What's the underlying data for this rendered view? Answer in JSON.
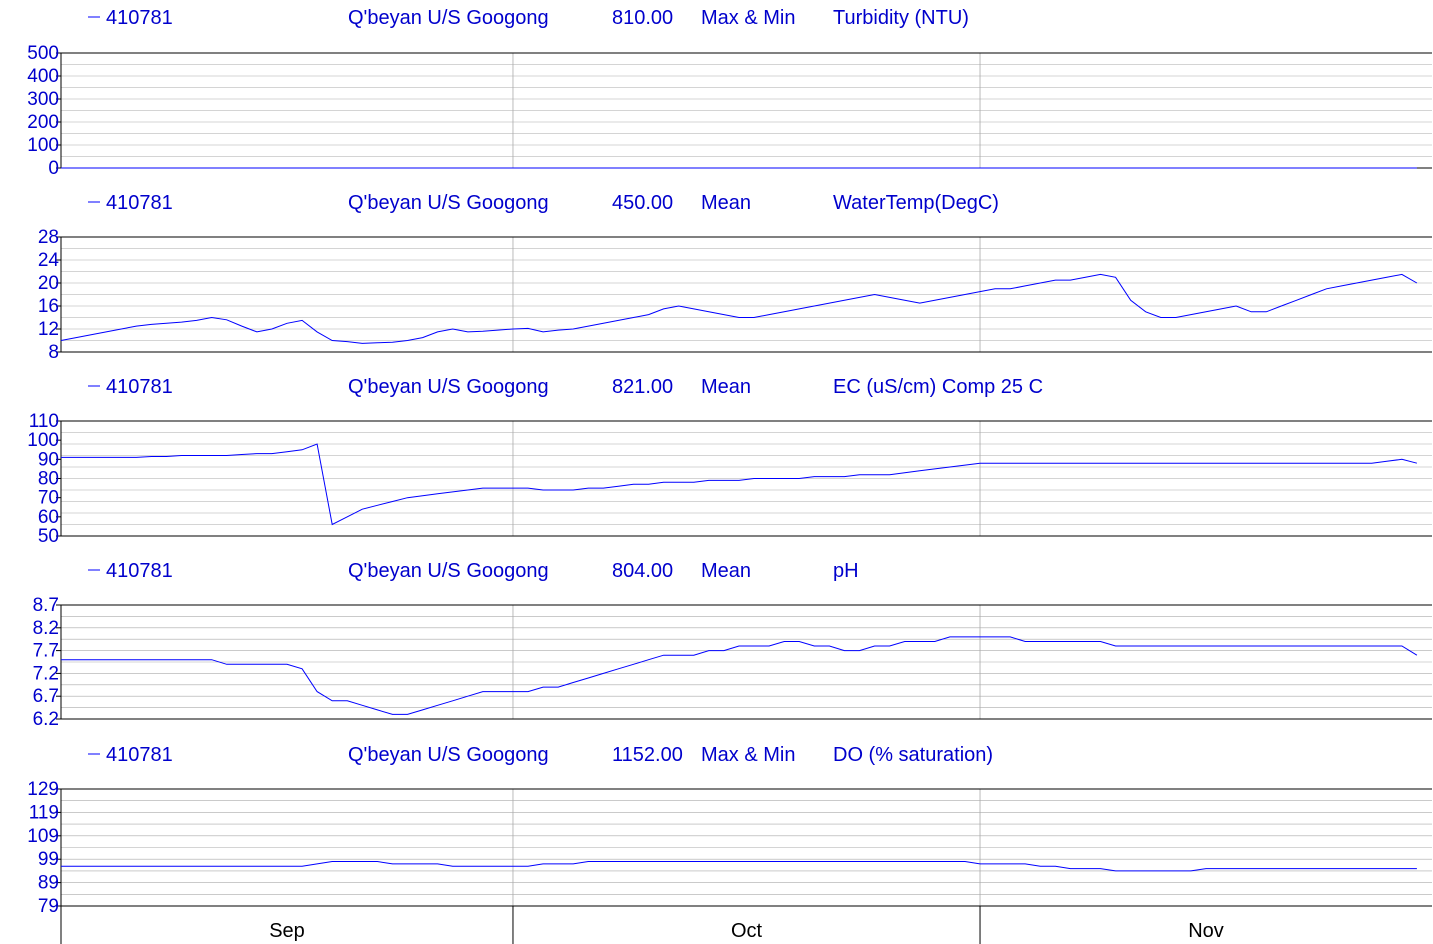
{
  "chart_data": [
    {
      "type": "line",
      "station": "410781",
      "site": "Q'beyan U/S Googong",
      "variable_code": "810.00",
      "statistic": "Max & Min",
      "parameter": "Turbidity (NTU)",
      "ylim": [
        0,
        500
      ],
      "yticks": [
        "500",
        "400",
        "300",
        "200",
        "100",
        "0"
      ],
      "x_day_range": [
        0,
        90
      ],
      "series_day_step": 1,
      "values": [
        0,
        0,
        0,
        0,
        0,
        0,
        0,
        0,
        0,
        0,
        0,
        0,
        0,
        0,
        0,
        0,
        0,
        0,
        0,
        0,
        0,
        0,
        0,
        0,
        0,
        0,
        0,
        0,
        0,
        0,
        0,
        0,
        0,
        0,
        0,
        0,
        0,
        0,
        0,
        0,
        0,
        0,
        0,
        0,
        0,
        0,
        0,
        0,
        0,
        0,
        0,
        0,
        0,
        0,
        0,
        0,
        0,
        0,
        0,
        0,
        0,
        0,
        0,
        0,
        0,
        0,
        0,
        0,
        0,
        0,
        0,
        0,
        0,
        0,
        0,
        0,
        0,
        0,
        0,
        0,
        0,
        0,
        0,
        0,
        0,
        0,
        0,
        0,
        0,
        0,
        0
      ]
    },
    {
      "type": "line",
      "station": "410781",
      "site": "Q'beyan U/S Googong",
      "variable_code": "450.00",
      "statistic": "Mean",
      "parameter": "WaterTemp(DegC)",
      "ylim": [
        8,
        28
      ],
      "yticks": [
        "28",
        "24",
        "20",
        "16",
        "12",
        "8"
      ],
      "x_day_range": [
        0,
        90
      ],
      "series_day_step": 1,
      "values": [
        10,
        10.5,
        11,
        11.5,
        12,
        12.5,
        12.8,
        13,
        13.2,
        13.5,
        14,
        13.6,
        12.5,
        11.5,
        12,
        13,
        13.5,
        11.5,
        10,
        9.8,
        9.5,
        9.6,
        9.7,
        10,
        10.5,
        11.5,
        12,
        11.5,
        11.6,
        11.8,
        12,
        12.1,
        11.5,
        11.8,
        12,
        12.5,
        13,
        13.5,
        14,
        14.5,
        15.5,
        16,
        15.5,
        15,
        14.5,
        14,
        14,
        14.5,
        15,
        15.5,
        16,
        16.5,
        17,
        17.5,
        18,
        17.5,
        17,
        16.5,
        17,
        17.5,
        18,
        18.5,
        19,
        19,
        19.5,
        20,
        20.5,
        20.5,
        21,
        21.5,
        21,
        17,
        15,
        14,
        14,
        14.5,
        15,
        15.5,
        16,
        15,
        15,
        16,
        17,
        18,
        19,
        19.5,
        20,
        20.5,
        21,
        21.5,
        20
      ]
    },
    {
      "type": "line",
      "station": "410781",
      "site": "Q'beyan U/S Googong",
      "variable_code": "821.00",
      "statistic": "Mean",
      "parameter": "EC (uS/cm) Comp 25 C",
      "ylim": [
        50,
        110
      ],
      "yticks": [
        "110",
        "100",
        "90",
        "80",
        "70",
        "60",
        "50"
      ],
      "x_day_range": [
        0,
        90
      ],
      "series_day_step": 1,
      "values": [
        91,
        91,
        91,
        91,
        91,
        91,
        91.5,
        91.5,
        92,
        92,
        92,
        92,
        92.5,
        93,
        93,
        94,
        95,
        98,
        56,
        60,
        64,
        66,
        68,
        70,
        71,
        72,
        73,
        74,
        75,
        75,
        75,
        75,
        74,
        74,
        74,
        75,
        75,
        76,
        77,
        77,
        78,
        78,
        78,
        79,
        79,
        79,
        80,
        80,
        80,
        80,
        81,
        81,
        81,
        82,
        82,
        82,
        83,
        84,
        85,
        86,
        87,
        88,
        88,
        88,
        88,
        88,
        88,
        88,
        88,
        88,
        88,
        88,
        88,
        88,
        88,
        88,
        88,
        88,
        88,
        88,
        88,
        88,
        88,
        88,
        88,
        88,
        88,
        88,
        89,
        90,
        88
      ]
    },
    {
      "type": "line",
      "station": "410781",
      "site": "Q'beyan U/S Googong",
      "variable_code": "804.00",
      "statistic": "Mean",
      "parameter": "pH",
      "ylim": [
        6.2,
        8.7
      ],
      "yticks": [
        "8.7",
        "8.2",
        "7.7",
        "7.2",
        "6.7",
        "6.2"
      ],
      "x_day_range": [
        0,
        90
      ],
      "series_day_step": 1,
      "values": [
        7.5,
        7.5,
        7.5,
        7.5,
        7.5,
        7.5,
        7.5,
        7.5,
        7.5,
        7.5,
        7.5,
        7.4,
        7.4,
        7.4,
        7.4,
        7.4,
        7.3,
        6.8,
        6.6,
        6.6,
        6.5,
        6.4,
        6.3,
        6.3,
        6.4,
        6.5,
        6.6,
        6.7,
        6.8,
        6.8,
        6.8,
        6.8,
        6.9,
        6.9,
        7.0,
        7.1,
        7.2,
        7.3,
        7.4,
        7.5,
        7.6,
        7.6,
        7.6,
        7.7,
        7.7,
        7.8,
        7.8,
        7.8,
        7.9,
        7.9,
        7.8,
        7.8,
        7.7,
        7.7,
        7.8,
        7.8,
        7.9,
        7.9,
        7.9,
        8.0,
        8.0,
        8.0,
        8.0,
        8.0,
        7.9,
        7.9,
        7.9,
        7.9,
        7.9,
        7.9,
        7.8,
        7.8,
        7.8,
        7.8,
        7.8,
        7.8,
        7.8,
        7.8,
        7.8,
        7.8,
        7.8,
        7.8,
        7.8,
        7.8,
        7.8,
        7.8,
        7.8,
        7.8,
        7.8,
        7.8,
        7.6
      ]
    },
    {
      "type": "line",
      "station": "410781",
      "site": "Q'beyan U/S Googong",
      "variable_code": "1152.00",
      "statistic": "Max & Min",
      "parameter": "DO (% saturation)",
      "ylim": [
        79,
        129
      ],
      "yticks": [
        "129",
        "119",
        "109",
        "99",
        "89",
        "79"
      ],
      "x_day_range": [
        0,
        90
      ],
      "series_day_step": 1,
      "values": [
        96,
        96,
        96,
        96,
        96,
        96,
        96,
        96,
        96,
        96,
        96,
        96,
        96,
        96,
        96,
        96,
        96,
        97,
        98,
        98,
        98,
        98,
        97,
        97,
        97,
        97,
        96,
        96,
        96,
        96,
        96,
        96,
        97,
        97,
        97,
        98,
        98,
        98,
        98,
        98,
        98,
        98,
        98,
        98,
        98,
        98,
        98,
        98,
        98,
        98,
        98,
        98,
        98,
        98,
        98,
        98,
        98,
        98,
        98,
        98,
        98,
        97,
        97,
        97,
        97,
        96,
        96,
        95,
        95,
        95,
        94,
        94,
        94,
        94,
        94,
        94,
        95,
        95,
        95,
        95,
        95,
        95,
        95,
        95,
        95,
        95,
        95,
        95,
        95,
        95,
        95
      ]
    }
  ],
  "x_axis": {
    "months": [
      {
        "label": "Sep",
        "start_day": 0,
        "end_day": 30
      },
      {
        "label": "Oct",
        "start_day": 30,
        "end_day": 61
      },
      {
        "label": "Nov",
        "start_day": 61,
        "end_day": 91
      }
    ]
  },
  "colors": {
    "series": "#0000ff",
    "title_text": "#0000cc",
    "axis": "#000000",
    "gridline": "#aaaaaa"
  }
}
